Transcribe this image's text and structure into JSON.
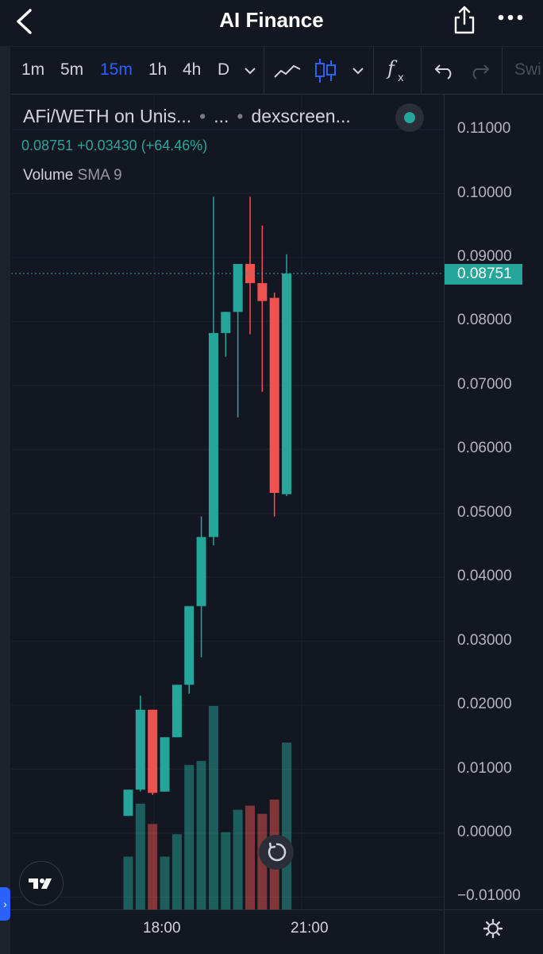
{
  "header": {
    "title": "AI Finance",
    "back_icon": "chevron-left-icon",
    "share_icon": "share-icon",
    "more_icon": "more-horizontal-icon"
  },
  "toolbar": {
    "timeframes": [
      "1m",
      "5m",
      "15m",
      "1h",
      "4h",
      "D"
    ],
    "active_timeframe": "15m",
    "icons": [
      "chevron-down-icon",
      "line-chart-icon",
      "candlestick-icon",
      "chevron-down-icon",
      "indicators-fx-icon",
      "undo-icon",
      "redo-icon"
    ],
    "overflow_label": "Swi"
  },
  "legend": {
    "symbol": "AFi/WETH on Unis...",
    "separator": "•",
    "middle": "...",
    "source": "dexscreen...",
    "price": "0.08751",
    "change": "+0.03430",
    "change_pct": "(+64.46%)",
    "volume_label": "Volume",
    "volume_indicator": "SMA 9",
    "status_color": "#26a69a"
  },
  "chart_data": {
    "type": "candlestick",
    "timeframe": "15m",
    "last_price": 0.08751,
    "up_color": "#26a69a",
    "down_color": "#ef5350",
    "y_ticks": [
      "0.11000",
      "0.10000",
      "0.09000",
      "0.08000",
      "0.07000",
      "0.06000",
      "0.05000",
      "0.04000",
      "0.03000",
      "0.02000",
      "0.01000",
      "0.00000",
      "−0.01000"
    ],
    "ylim": [
      -0.0112,
      0.1183
    ],
    "x_ticks": [
      "18:00",
      "21:00"
    ],
    "candles": [
      {
        "o": 0.0027,
        "h": 0.0068,
        "l": 0.0027,
        "c": 0.0068
      },
      {
        "o": 0.0068,
        "h": 0.0215,
        "l": 0.0065,
        "c": 0.0193
      },
      {
        "o": 0.0193,
        "h": 0.0193,
        "l": 0.006,
        "c": 0.0063
      },
      {
        "o": 0.0065,
        "h": 0.015,
        "l": 0.0065,
        "c": 0.015
      },
      {
        "o": 0.015,
        "h": 0.0232,
        "l": 0.015,
        "c": 0.0232
      },
      {
        "o": 0.0232,
        "h": 0.0355,
        "l": 0.0218,
        "c": 0.0355
      },
      {
        "o": 0.0355,
        "h": 0.0495,
        "l": 0.0275,
        "c": 0.0463
      },
      {
        "o": 0.0463,
        "h": 0.0995,
        "l": 0.045,
        "c": 0.0782
      },
      {
        "o": 0.0782,
        "h": 0.0815,
        "l": 0.0745,
        "c": 0.0815
      },
      {
        "o": 0.0815,
        "h": 0.089,
        "l": 0.065,
        "c": 0.089
      },
      {
        "o": 0.089,
        "h": 0.0995,
        "l": 0.078,
        "c": 0.086
      },
      {
        "o": 0.086,
        "h": 0.095,
        "l": 0.069,
        "c": 0.0832
      },
      {
        "o": 0.0837,
        "h": 0.0845,
        "l": 0.0495,
        "c": 0.0532
      },
      {
        "o": 0.053,
        "h": 0.0905,
        "l": 0.0527,
        "c": 0.0875
      }
    ],
    "volume": [
      {
        "v": 0.26,
        "up": true
      },
      {
        "v": 0.52,
        "up": true
      },
      {
        "v": 0.42,
        "up": false
      },
      {
        "v": 0.26,
        "up": true
      },
      {
        "v": 0.37,
        "up": true
      },
      {
        "v": 0.71,
        "up": true
      },
      {
        "v": 0.73,
        "up": true
      },
      {
        "v": 1.0,
        "up": true
      },
      {
        "v": 0.38,
        "up": true
      },
      {
        "v": 0.49,
        "up": true
      },
      {
        "v": 0.51,
        "up": false
      },
      {
        "v": 0.47,
        "up": false
      },
      {
        "v": 0.54,
        "up": false
      },
      {
        "v": 0.82,
        "up": true
      }
    ]
  }
}
